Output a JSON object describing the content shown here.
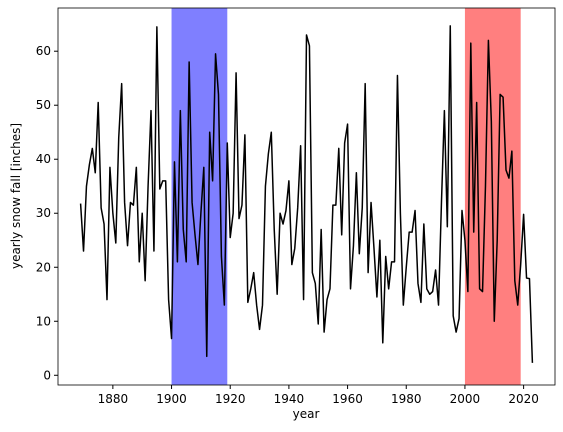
{
  "chart_data": {
    "type": "line",
    "xlabel": "year",
    "ylabel": "yearly snow fall [inches]",
    "x": [
      1869,
      1870,
      1871,
      1872,
      1873,
      1874,
      1875,
      1876,
      1877,
      1878,
      1879,
      1880,
      1881,
      1882,
      1883,
      1884,
      1885,
      1886,
      1887,
      1888,
      1889,
      1890,
      1891,
      1892,
      1893,
      1894,
      1895,
      1896,
      1897,
      1898,
      1899,
      1900,
      1901,
      1902,
      1903,
      1904,
      1905,
      1906,
      1907,
      1908,
      1909,
      1910,
      1911,
      1912,
      1913,
      1914,
      1915,
      1916,
      1917,
      1918,
      1919,
      1920,
      1921,
      1922,
      1923,
      1924,
      1925,
      1926,
      1927,
      1928,
      1929,
      1930,
      1931,
      1932,
      1933,
      1934,
      1935,
      1936,
      1937,
      1938,
      1939,
      1940,
      1941,
      1942,
      1943,
      1944,
      1945,
      1946,
      1947,
      1948,
      1949,
      1950,
      1951,
      1952,
      1953,
      1954,
      1955,
      1956,
      1957,
      1958,
      1959,
      1960,
      1961,
      1962,
      1963,
      1964,
      1965,
      1966,
      1967,
      1968,
      1969,
      1970,
      1971,
      1972,
      1973,
      1974,
      1975,
      1976,
      1977,
      1978,
      1979,
      1980,
      1981,
      1982,
      1983,
      1984,
      1985,
      1986,
      1987,
      1988,
      1989,
      1990,
      1991,
      1992,
      1993,
      1994,
      1995,
      1996,
      1997,
      1998,
      1999,
      2000,
      2001,
      2002,
      2003,
      2004,
      2005,
      2006,
      2007,
      2008,
      2009,
      2010,
      2011,
      2012,
      2013,
      2014,
      2015,
      2016,
      2017,
      2018,
      2019,
      2020,
      2021,
      2022,
      2023
    ],
    "series": [
      {
        "color": "#000000",
        "values": [
          31.8,
          23,
          35,
          39,
          42,
          37.5,
          50.5,
          31,
          28,
          14,
          38.5,
          30,
          24.5,
          44,
          54,
          32,
          24,
          32,
          31.5,
          38.5,
          21,
          30,
          17.5,
          35,
          49,
          23,
          64.5,
          34.5,
          36,
          36,
          14,
          6.8,
          39.5,
          21,
          49,
          27,
          21,
          58,
          32,
          26,
          20.5,
          30,
          38.5,
          3.5,
          45,
          36,
          59.5,
          52,
          22,
          13,
          43,
          25.5,
          30,
          56,
          29,
          31.5,
          44.5,
          13.5,
          16,
          19,
          13,
          8.5,
          13,
          35,
          41,
          45,
          27,
          15,
          30,
          28,
          30.5,
          36,
          20.5,
          23.5,
          31,
          42.5,
          14,
          63,
          61,
          19,
          17,
          9.5,
          27,
          8,
          14,
          16,
          31.5,
          31.5,
          42,
          26,
          43,
          46.5,
          16,
          24,
          37.5,
          22.5,
          31,
          54,
          19,
          32,
          23.5,
          14.5,
          25,
          6,
          22,
          16,
          21,
          21,
          55.5,
          30,
          13,
          20,
          26.5,
          26.5,
          30.5,
          17,
          13.5,
          28,
          16,
          15,
          15.5,
          19.5,
          13,
          32,
          49,
          27.5,
          64.7,
          11,
          8,
          10.5,
          30.5,
          25,
          15.5,
          61.5,
          26.5,
          50.5,
          16,
          15.5,
          35,
          62,
          47,
          10,
          25,
          52,
          51.5,
          38,
          36.5,
          41.5,
          17.5,
          13,
          20.5,
          29.8,
          18,
          17.9,
          2.3
        ]
      }
    ],
    "spans": [
      {
        "start": 1900,
        "end": 1919,
        "color": "#0000ff"
      },
      {
        "start": 2000,
        "end": 2019,
        "color": "#ff0000"
      }
    ],
    "xlim": [
      1861.3,
      2030.7
    ],
    "xticks": [
      1880,
      1900,
      1920,
      1940,
      1960,
      1980,
      2000,
      2020
    ],
    "ylim": [
      -1.8,
      68
    ],
    "yticks": [
      0,
      10,
      20,
      30,
      40,
      50,
      60
    ]
  }
}
